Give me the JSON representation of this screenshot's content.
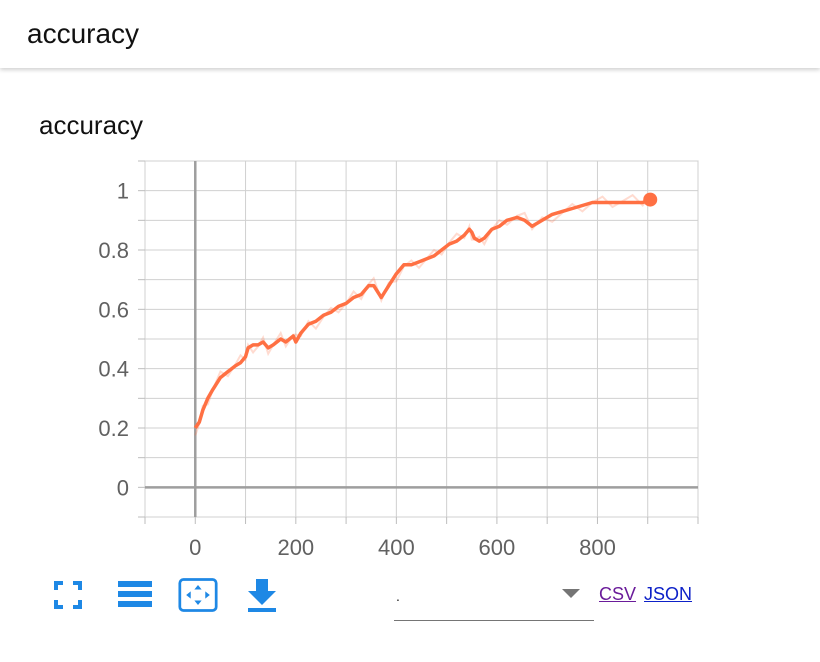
{
  "header": {
    "title": "accuracy"
  },
  "card": {
    "title": "accuracy"
  },
  "chart_data": {
    "type": "line",
    "title": "",
    "xlabel": "",
    "ylabel": "",
    "xlim": [
      -100,
      1000
    ],
    "ylim": [
      -0.1,
      1.1
    ],
    "x_ticks": [
      0,
      200,
      400,
      600,
      800
    ],
    "y_ticks": [
      0,
      0.2,
      0.4,
      0.6,
      0.8,
      1
    ],
    "x_tick_labels": [
      "0",
      "200",
      "400",
      "600",
      "800"
    ],
    "y_tick_labels": [
      "0",
      "0.2",
      "0.4",
      "0.6",
      "0.8",
      "1"
    ],
    "grid": true,
    "legend": "none",
    "series": [
      {
        "color": "#ff7043",
        "points": [
          [
            0,
            0.2
          ],
          [
            8,
            0.22
          ],
          [
            15,
            0.26
          ],
          [
            25,
            0.3
          ],
          [
            35,
            0.33
          ],
          [
            50,
            0.37
          ],
          [
            65,
            0.39
          ],
          [
            80,
            0.41
          ],
          [
            90,
            0.42
          ],
          [
            100,
            0.44
          ],
          [
            105,
            0.47
          ],
          [
            115,
            0.48
          ],
          [
            125,
            0.48
          ],
          [
            135,
            0.49
          ],
          [
            145,
            0.47
          ],
          [
            155,
            0.48
          ],
          [
            170,
            0.5
          ],
          [
            180,
            0.49
          ],
          [
            195,
            0.51
          ],
          [
            200,
            0.49
          ],
          [
            210,
            0.52
          ],
          [
            225,
            0.55
          ],
          [
            240,
            0.56
          ],
          [
            255,
            0.58
          ],
          [
            270,
            0.59
          ],
          [
            285,
            0.61
          ],
          [
            300,
            0.62
          ],
          [
            315,
            0.64
          ],
          [
            330,
            0.65
          ],
          [
            345,
            0.68
          ],
          [
            355,
            0.68
          ],
          [
            370,
            0.64
          ],
          [
            385,
            0.68
          ],
          [
            400,
            0.72
          ],
          [
            415,
            0.75
          ],
          [
            430,
            0.75
          ],
          [
            445,
            0.76
          ],
          [
            460,
            0.77
          ],
          [
            475,
            0.78
          ],
          [
            490,
            0.8
          ],
          [
            505,
            0.82
          ],
          [
            520,
            0.83
          ],
          [
            535,
            0.85
          ],
          [
            545,
            0.87
          ],
          [
            550,
            0.86
          ],
          [
            555,
            0.84
          ],
          [
            565,
            0.83
          ],
          [
            575,
            0.84
          ],
          [
            590,
            0.87
          ],
          [
            605,
            0.88
          ],
          [
            620,
            0.9
          ],
          [
            640,
            0.91
          ],
          [
            655,
            0.9
          ],
          [
            670,
            0.88
          ],
          [
            690,
            0.9
          ],
          [
            710,
            0.92
          ],
          [
            730,
            0.93
          ],
          [
            750,
            0.94
          ],
          [
            770,
            0.95
          ],
          [
            790,
            0.96
          ],
          [
            810,
            0.96
          ],
          [
            830,
            0.96
          ],
          [
            850,
            0.96
          ],
          [
            870,
            0.96
          ],
          [
            890,
            0.96
          ],
          [
            905,
            0.97
          ]
        ]
      }
    ]
  },
  "toolbar": {
    "fullscreen_icon": "fullscreen-icon",
    "list_icon": "list-icon",
    "fit_icon": "fit-domain-icon",
    "download_icon": "download-icon",
    "icon_color": "#1e88e5"
  },
  "select": {
    "value": "."
  },
  "links": {
    "csv": "CSV",
    "json": "JSON",
    "csv_color": "#6a1b9a",
    "json_color": "#0d21c8"
  }
}
